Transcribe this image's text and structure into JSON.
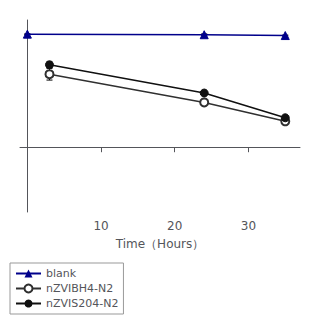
{
  "chart_data": {
    "type": "line",
    "xlabel": "Time（Hours）",
    "xlim": [
      -1,
      37
    ],
    "xticks": [
      10,
      20,
      30
    ],
    "ylim": [
      -0.55,
      1.08
    ],
    "yticks": [],
    "tick_labels": "x",
    "grid": false,
    "legend": "lower left",
    "series": [
      {
        "name": "blank",
        "color": "#00008B",
        "marker": "triangle",
        "x": [
          0,
          24,
          35
        ],
        "values": [
          0.96,
          0.955,
          0.948
        ],
        "yerr": [
          0.003,
          0.007,
          0.004
        ]
      },
      {
        "name": "nZVIBH4-N2",
        "color": "#303030",
        "marker": "open_circle",
        "x": [
          3,
          24,
          35
        ],
        "values": [
          0.62,
          0.38,
          0.22
        ],
        "yerr": [
          0.05,
          0.015,
          0.008
        ]
      },
      {
        "name": "nZVIS204-N2",
        "color": "#101010",
        "marker": "circle",
        "x": [
          3,
          24,
          35
        ],
        "values": [
          0.7,
          0.46,
          0.25
        ],
        "yerr": [
          0.025,
          0.018,
          0.008
        ]
      }
    ]
  }
}
